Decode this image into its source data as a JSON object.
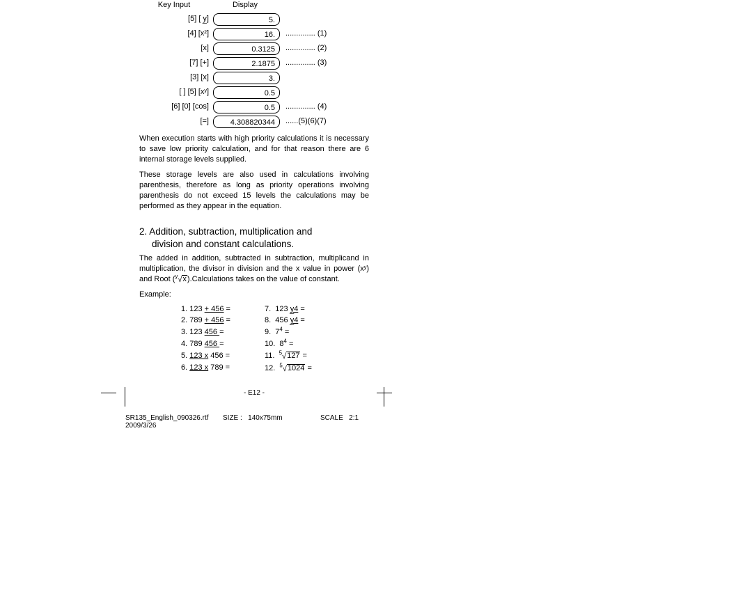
{
  "headers": {
    "key_input": "Key Input",
    "display": "Display"
  },
  "rows": [
    {
      "key": "[5] [ y̲]",
      "display": "5.",
      "annot": ""
    },
    {
      "key": "[4] [x²]",
      "display": "16.",
      "annot": ".............. (1)"
    },
    {
      "key": "[x]",
      "display": "0.3125",
      "annot": ".............. (2)"
    },
    {
      "key": "[7] [+]",
      "display": "2.1875",
      "annot": ".............. (3)"
    },
    {
      "key": "[3] [x]",
      "display": "3.",
      "annot": ""
    },
    {
      "key": "[   ] [5] [xʸ]",
      "display": "0.5",
      "annot": ""
    },
    {
      "key": "[6] [0] [cos]",
      "display": "0.5",
      "annot": ".............. (4)"
    },
    {
      "key": "[=]",
      "display": "4.308820344",
      "annot": "......(5)(6)(7)"
    }
  ],
  "paragraphs": {
    "p1": "When execution starts with high priority calculations it is necessary to save low priority calculation, and for that reason there are 6 internal storage levels supplied.",
    "p2": "These storage levels are also used in calculations involving parenthesis, therefore as long as priority operations involving parenthesis do not exceed 15 levels the calculations may be performed as they appear in the equation."
  },
  "section": {
    "num": "2.",
    "line1": "Addition, subtraction, multiplication and",
    "line2": "division and constant calculations."
  },
  "section_body": {
    "part_a": "The added in addition, subtracted in subtraction, multiplicand in multiplication, the divisor in division and the x value in power (xʸ) and Root (",
    "root_index": "y",
    "root_radicand": "x",
    "part_b": ").Calculations takes on the value of constant."
  },
  "example_label": "Example:",
  "examples_left": [
    {
      "n": "1.",
      "pre": "123 ",
      "ul": "+ 456",
      "post": " ="
    },
    {
      "n": "2.",
      "pre": "789 ",
      "ul": "+ 456",
      "post": " ="
    },
    {
      "n": "3.",
      "pre": "123 ",
      "ul": "  456  ",
      "post": " ="
    },
    {
      "n": "4.",
      "pre": "789 ",
      "ul": "  456  ",
      "post": " ="
    },
    {
      "n": "5.",
      "pre": "",
      "ul": "123 x",
      "post": " 456 ="
    },
    {
      "n": "6.",
      "pre": "",
      "ul": "123 x",
      "post": " 789 ="
    }
  ],
  "examples_right": [
    {
      "n": "7.",
      "text_a": "123  ",
      "ul": "y̲4",
      "text_b": " ="
    },
    {
      "n": "8.",
      "text_a": "456  ",
      "ul": "y̲4",
      "text_b": " ="
    },
    {
      "n": "9.",
      "base": "7",
      "exp": "4",
      "tail": " ="
    },
    {
      "n": "10.",
      "base": "8",
      "exp": "4",
      "tail": " ="
    },
    {
      "n": "11.",
      "root_index": "5",
      "radicand": "127",
      "tail": "   ="
    },
    {
      "n": "12.",
      "root_index": "5",
      "radicand": "1024",
      "tail": "   ="
    }
  ],
  "page_footer": "-  E12  -",
  "meta": {
    "file": "SR135_English_090326.rtf",
    "size_label": "SIZE     :",
    "size_value": "140x75mm",
    "scale_label": "SCALE",
    "scale_value": "2:1",
    "date": "2009/3/26"
  },
  "colors": {
    "text": "#000000",
    "background": "#ffffff",
    "border": "#000000"
  }
}
